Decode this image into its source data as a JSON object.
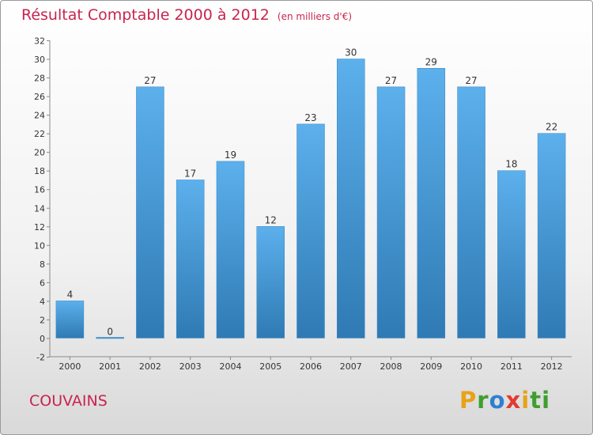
{
  "header": {
    "title": "Résultat Comptable 2000 à 2012",
    "subtitle": "(en milliers d'€)"
  },
  "commune": "COUVAINS",
  "logo": {
    "letters": [
      "P",
      "r",
      "o",
      "x",
      "i",
      "t",
      "i"
    ],
    "colors": [
      "#e8a21a",
      "#3f9f2e",
      "#2f7fd1",
      "#e23b2f",
      "#e8a21a",
      "#3f9f2e",
      "#3f9f2e"
    ]
  },
  "colors": {
    "bar_top": "#5cb0ec",
    "bar_bottom": "#2f7ab4",
    "accent": "#c8244f"
  },
  "chart_data": {
    "type": "bar",
    "title": "Résultat Comptable 2000 à 2012",
    "subtitle": "(en milliers d'€)",
    "categories": [
      "2000",
      "2001",
      "2002",
      "2003",
      "2004",
      "2005",
      "2006",
      "2007",
      "2008",
      "2009",
      "2010",
      "2011",
      "2012"
    ],
    "values": [
      4,
      0,
      27,
      17,
      19,
      12,
      23,
      30,
      27,
      29,
      27,
      18,
      22
    ],
    "data_labels": [
      "4",
      "0",
      "27",
      "17",
      "19",
      "12",
      "23",
      "30",
      "27",
      "29",
      "27",
      "18",
      "22"
    ],
    "y_ticks": [
      -2,
      0,
      2,
      4,
      6,
      8,
      10,
      12,
      14,
      16,
      18,
      20,
      22,
      24,
      26,
      28,
      30,
      32
    ],
    "ylim": [
      -2,
      32
    ],
    "xlabel": "",
    "ylabel": "",
    "grid": false,
    "legend": "none"
  }
}
